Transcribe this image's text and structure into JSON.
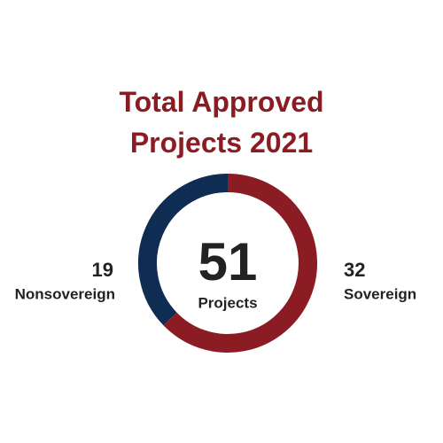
{
  "chart_data": {
    "type": "donut",
    "title": "Total Approved Projects 2021",
    "categories": [
      "Sovereign",
      "Nonsovereign"
    ],
    "values": [
      32,
      19
    ],
    "colors": [
      "#8b1c24",
      "#0f2d52"
    ],
    "center_value": 51,
    "center_label": "Projects",
    "title_color": "#8b1c24"
  }
}
